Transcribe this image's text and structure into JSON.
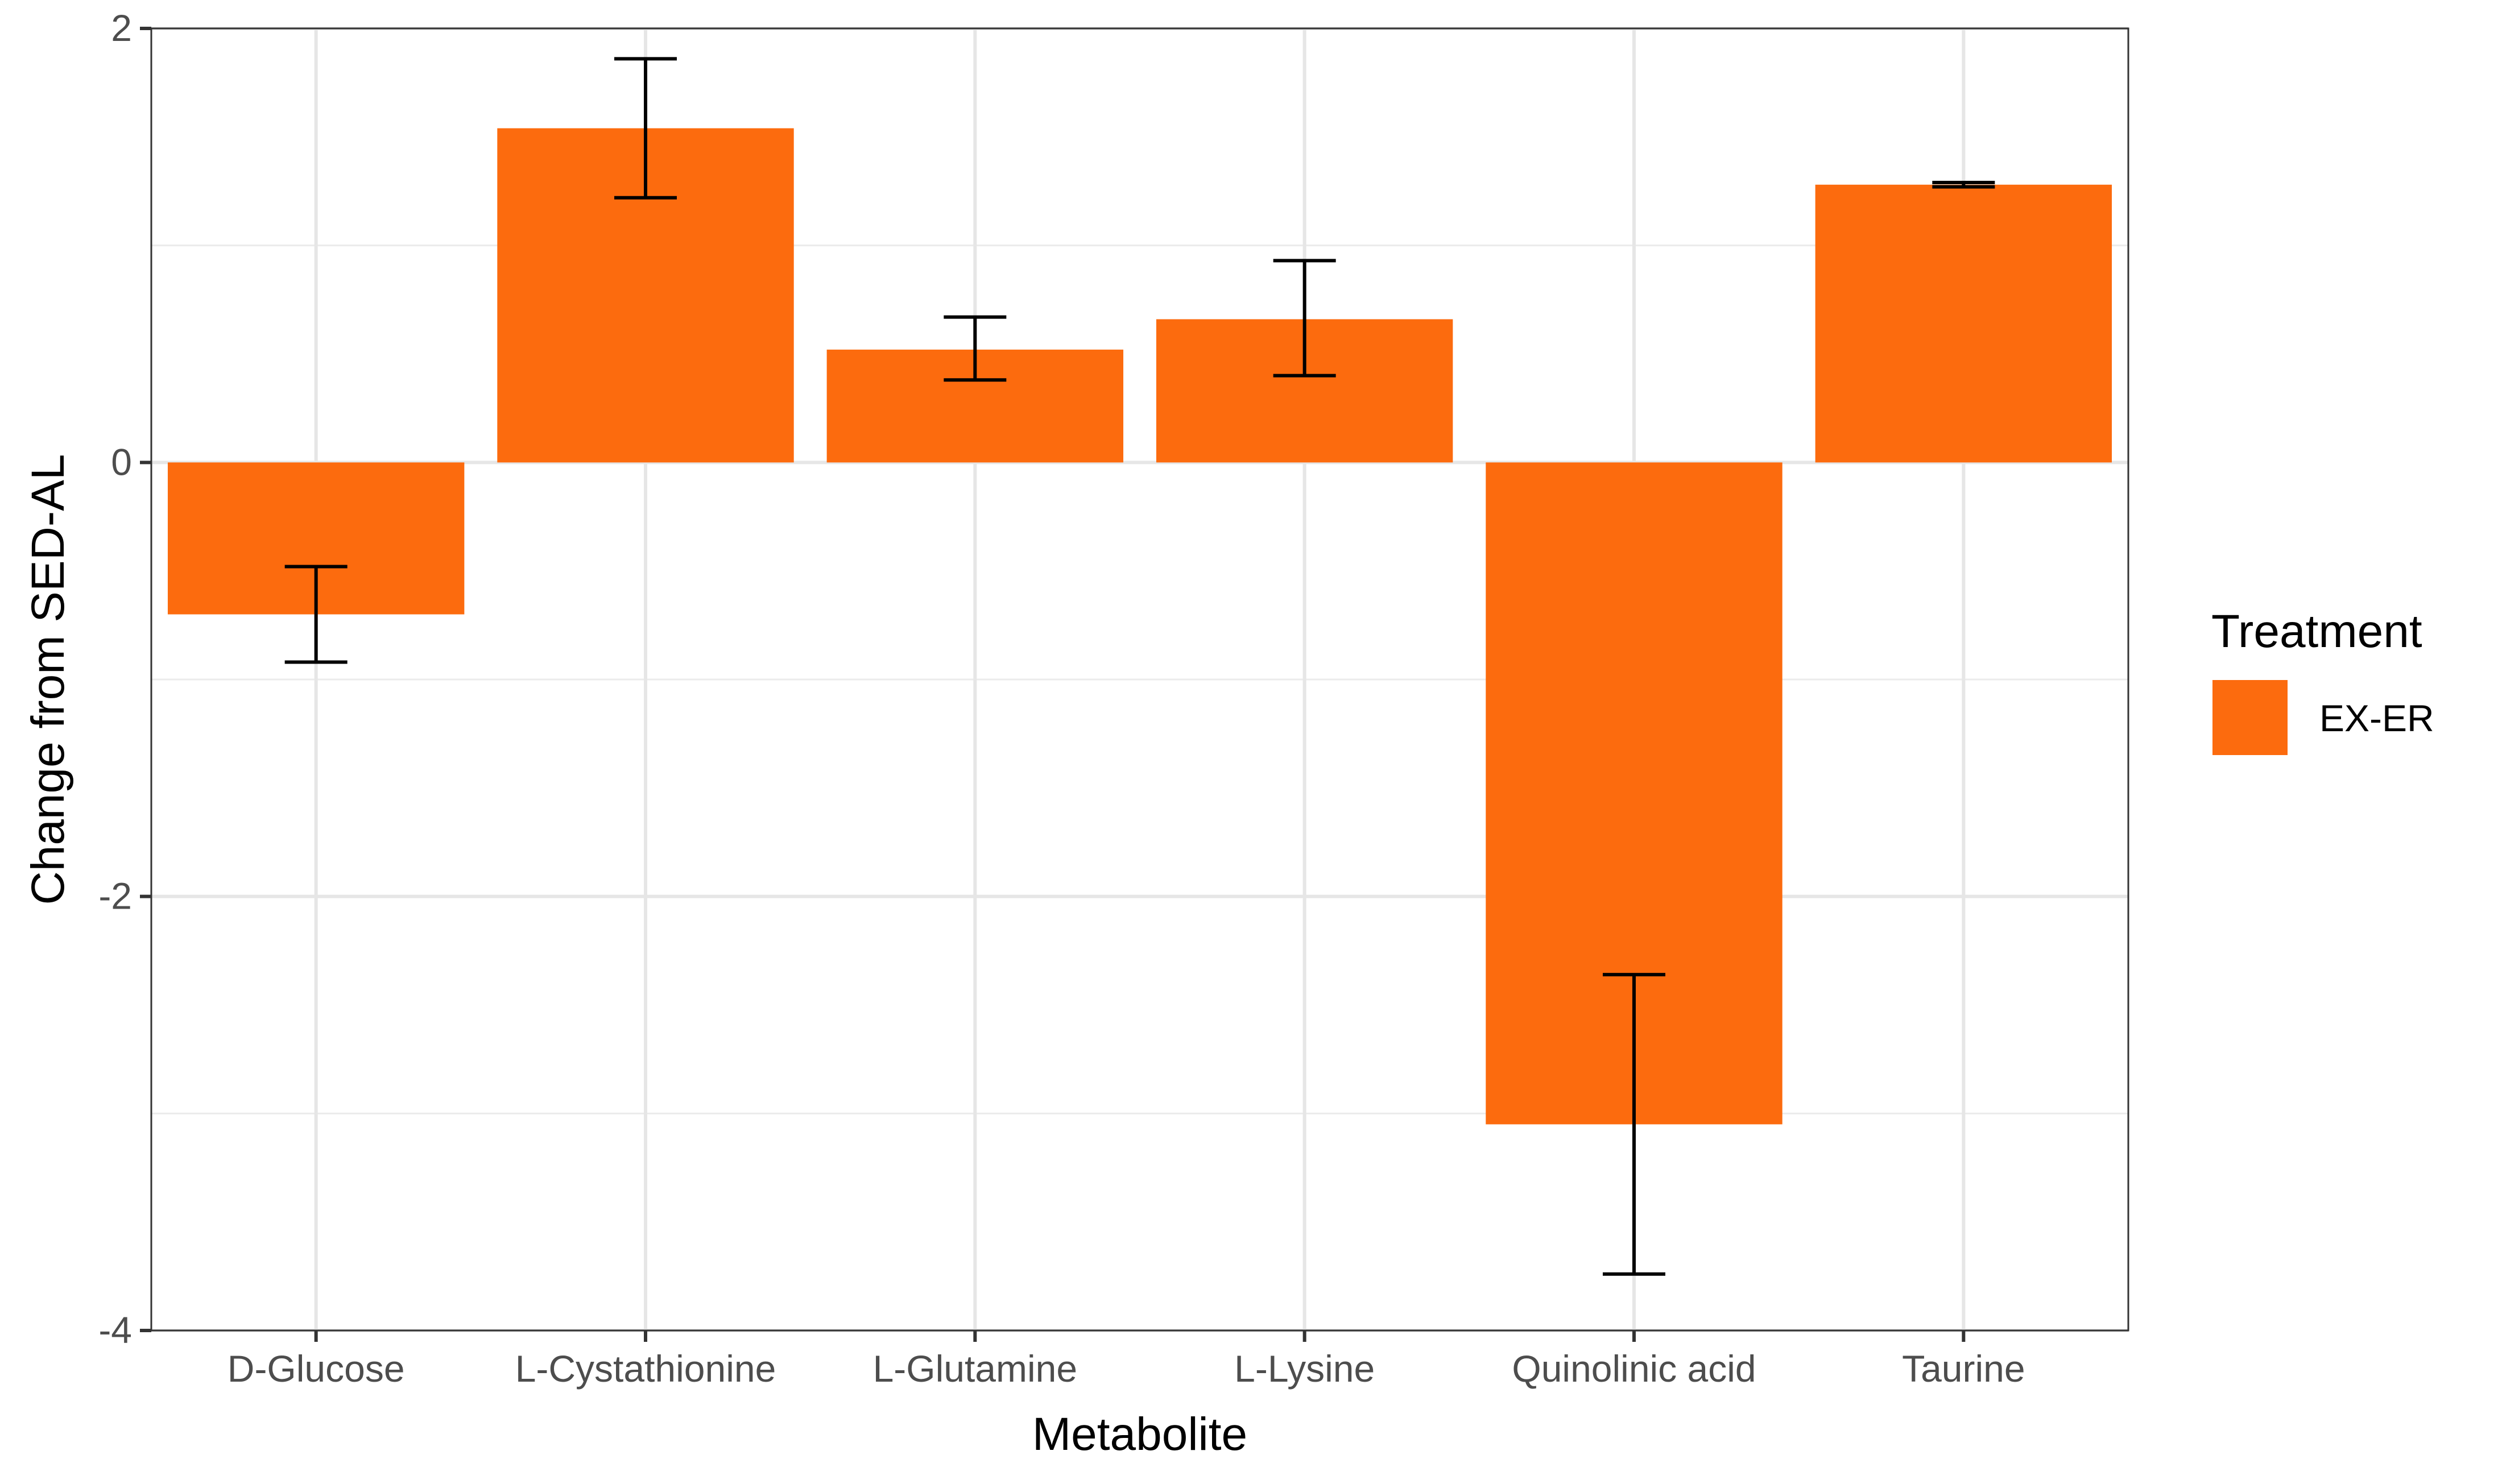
{
  "chart_data": {
    "type": "bar",
    "categories": [
      "D-Glucose",
      "L-Cystathionine",
      "L-Glutamine",
      "L-Lysine",
      "Quinolinic acid",
      "Taurine"
    ],
    "series": [
      {
        "name": "EX-ER",
        "color": "#fc6b0e",
        "values": [
          -0.7,
          1.54,
          0.52,
          0.66,
          -3.05,
          1.28
        ],
        "error_low": [
          -0.92,
          1.22,
          0.38,
          0.4,
          -3.74,
          1.27
        ],
        "error_high": [
          -0.48,
          1.86,
          0.67,
          0.93,
          -2.36,
          1.29
        ]
      }
    ],
    "xlabel": "Metabolite",
    "ylabel": "Change from SED-AL",
    "ylim": [
      -4.0,
      2.0
    ],
    "yticks": [
      -4,
      -2,
      0,
      2
    ],
    "ytick_labels": [
      "-4",
      "-2",
      "0",
      "2"
    ],
    "grid": true,
    "legend": {
      "title": "Treatment",
      "position": "right",
      "entries": [
        "EX-ER"
      ]
    }
  }
}
